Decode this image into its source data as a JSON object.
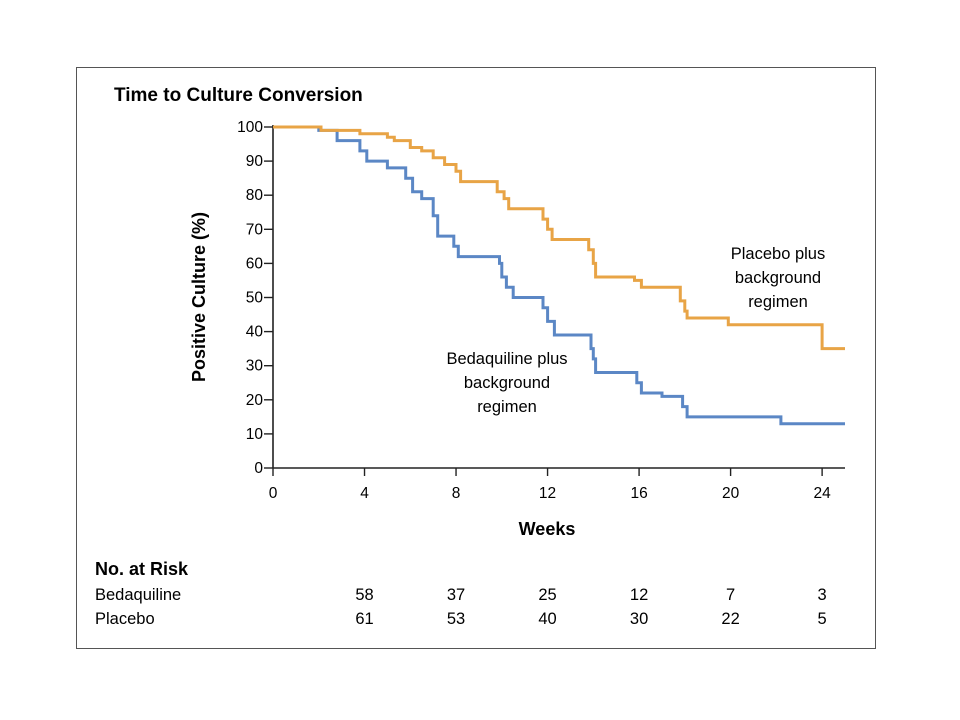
{
  "chart_data": {
    "type": "line",
    "title": "Time to Culture Conversion",
    "xlabel": "Weeks",
    "ylabel": "Positive Culture (%)",
    "xlim": [
      0,
      25
    ],
    "ylim": [
      0,
      100
    ],
    "x_ticks": [
      "0",
      "4",
      "8",
      "12",
      "16",
      "20",
      "24"
    ],
    "y_ticks": [
      "0",
      "10",
      "20",
      "30",
      "40",
      "50",
      "60",
      "70",
      "80",
      "90",
      "100"
    ],
    "grid": false,
    "series": [
      {
        "name": "Bedaquiline plus background regimen",
        "color": "#5b87c5",
        "points": [
          [
            0,
            100
          ],
          [
            2,
            100
          ],
          [
            2,
            99
          ],
          [
            2.8,
            99
          ],
          [
            2.8,
            96
          ],
          [
            3.8,
            96
          ],
          [
            3.8,
            93
          ],
          [
            4.1,
            93
          ],
          [
            4.1,
            90
          ],
          [
            5,
            90
          ],
          [
            5,
            88
          ],
          [
            5.8,
            88
          ],
          [
            5.8,
            85
          ],
          [
            6.1,
            85
          ],
          [
            6.1,
            81
          ],
          [
            6.5,
            81
          ],
          [
            6.5,
            79
          ],
          [
            7,
            79
          ],
          [
            7,
            74
          ],
          [
            7.2,
            74
          ],
          [
            7.2,
            68
          ],
          [
            7.9,
            68
          ],
          [
            7.9,
            65
          ],
          [
            8.1,
            65
          ],
          [
            8.1,
            62
          ],
          [
            9.9,
            62
          ],
          [
            9.9,
            60
          ],
          [
            10,
            60
          ],
          [
            10,
            56
          ],
          [
            10.2,
            56
          ],
          [
            10.2,
            53
          ],
          [
            10.5,
            53
          ],
          [
            10.5,
            50
          ],
          [
            11.8,
            50
          ],
          [
            11.8,
            47
          ],
          [
            12,
            47
          ],
          [
            12,
            43
          ],
          [
            12.3,
            43
          ],
          [
            12.3,
            39
          ],
          [
            13.9,
            39
          ],
          [
            13.9,
            35
          ],
          [
            14,
            35
          ],
          [
            14,
            32
          ],
          [
            14.1,
            32
          ],
          [
            14.1,
            28
          ],
          [
            15.9,
            28
          ],
          [
            15.9,
            25
          ],
          [
            16.1,
            25
          ],
          [
            16.1,
            22
          ],
          [
            17,
            22
          ],
          [
            17,
            21
          ],
          [
            17.9,
            21
          ],
          [
            17.9,
            18
          ],
          [
            18.1,
            18
          ],
          [
            18.1,
            15
          ],
          [
            22.2,
            15
          ],
          [
            22.2,
            13
          ],
          [
            25,
            13
          ]
        ]
      },
      {
        "name": "Placebo plus background regimen",
        "color": "#e8a446",
        "points": [
          [
            0,
            100
          ],
          [
            2.1,
            100
          ],
          [
            2.1,
            99
          ],
          [
            3.8,
            99
          ],
          [
            3.8,
            98
          ],
          [
            5,
            98
          ],
          [
            5,
            97
          ],
          [
            5.3,
            97
          ],
          [
            5.3,
            96
          ],
          [
            6,
            96
          ],
          [
            6,
            94
          ],
          [
            6.5,
            94
          ],
          [
            6.5,
            93
          ],
          [
            7,
            93
          ],
          [
            7,
            91
          ],
          [
            7.5,
            91
          ],
          [
            7.5,
            89
          ],
          [
            8,
            89
          ],
          [
            8,
            87
          ],
          [
            8.2,
            87
          ],
          [
            8.2,
            84
          ],
          [
            9.8,
            84
          ],
          [
            9.8,
            81
          ],
          [
            10.1,
            81
          ],
          [
            10.1,
            79
          ],
          [
            10.3,
            79
          ],
          [
            10.3,
            76
          ],
          [
            11.8,
            76
          ],
          [
            11.8,
            73
          ],
          [
            12,
            73
          ],
          [
            12,
            70
          ],
          [
            12.2,
            70
          ],
          [
            12.2,
            67
          ],
          [
            13.8,
            67
          ],
          [
            13.8,
            64
          ],
          [
            14,
            64
          ],
          [
            14,
            60
          ],
          [
            14.1,
            60
          ],
          [
            14.1,
            56
          ],
          [
            15.8,
            56
          ],
          [
            15.8,
            55
          ],
          [
            16.1,
            55
          ],
          [
            16.1,
            53
          ],
          [
            17.8,
            53
          ],
          [
            17.8,
            49
          ],
          [
            18,
            49
          ],
          [
            18,
            46
          ],
          [
            18.1,
            46
          ],
          [
            18.1,
            44
          ],
          [
            19.9,
            44
          ],
          [
            19.9,
            42
          ],
          [
            24,
            42
          ],
          [
            24,
            35
          ],
          [
            25,
            35
          ]
        ]
      }
    ],
    "annotations": [
      {
        "lines": [
          "Placebo plus",
          "background",
          "regimen"
        ],
        "series": 1
      },
      {
        "lines": [
          "Bedaquiline plus",
          "background",
          "regimen"
        ],
        "series": 0
      }
    ],
    "number_at_risk": {
      "heading": "No. at Risk",
      "weeks": [
        "4",
        "8",
        "12",
        "16",
        "20",
        "24"
      ],
      "rows": [
        {
          "label": "Bedaquiline",
          "values": [
            "58",
            "37",
            "25",
            "12",
            "7",
            "3"
          ]
        },
        {
          "label": "Placebo",
          "values": [
            "61",
            "53",
            "40",
            "30",
            "22",
            "5"
          ]
        }
      ]
    }
  }
}
